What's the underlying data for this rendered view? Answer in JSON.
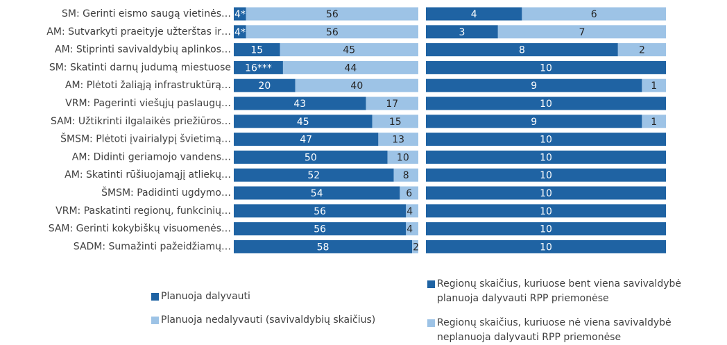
{
  "chart_data": [
    {
      "type": "stacked-bar-horizontal",
      "categories": [
        "SM: Gerinti eismo saugą vietinės…",
        "AM: Sutvarkyti praeityje užterštas ir…",
        "AM: Stiprinti savivaldybių aplinkos…",
        "SM: Skatinti darnų judumą miestuose",
        "AM: Plėtoti žaliąją infrastruktūrą…",
        "VRM: Pagerinti viešųjų paslaugų…",
        "SAM: Užtikrinti ilgalaikės priežiūros…",
        "ŠMSM: Plėtoti įvairialypį švietimą…",
        "AM: Didinti geriamojo vandens…",
        "AM: Skatinti rūšiuojamąjį atliekų…",
        "ŠMSM: Padidinti ugdymo…",
        "VRM: Paskatinti regionų, funkcinių…",
        "SAM: Gerinti kokybiškų visuomenės…",
        "SADM: Sumažinti pažeidžiamų…"
      ],
      "xlim": [
        0,
        60
      ],
      "series": [
        {
          "name": "Planuoja dalyvauti",
          "color": "#1f63a3",
          "values": [
            4,
            4,
            15,
            16,
            20,
            43,
            45,
            47,
            50,
            52,
            54,
            56,
            56,
            58
          ],
          "value_labels": [
            "4*",
            "4**",
            "15",
            "16***",
            "20",
            "43",
            "45",
            "47",
            "50",
            "52",
            "54",
            "56",
            "56",
            "58"
          ]
        },
        {
          "name": "Planuoja nedalyvauti (savivaldybių skaičius)",
          "color": "#9dc3e6",
          "values": [
            56,
            56,
            45,
            44,
            40,
            17,
            15,
            13,
            10,
            8,
            6,
            4,
            4,
            2
          ]
        }
      ]
    },
    {
      "type": "stacked-bar-horizontal",
      "xlim": [
        0,
        10
      ],
      "series": [
        {
          "name": "Regionų skaičius, kuriuose bent viena savivaldybė planuoja dalyvauti RPP priemonėse",
          "color": "#1f63a3",
          "values": [
            4,
            3,
            8,
            10,
            9,
            10,
            9,
            10,
            10,
            10,
            10,
            10,
            10,
            10
          ]
        },
        {
          "name": "Regionų skaičius, kuriuose nė viena savivaldybė neplanuoja dalyvauti  RPP priemonėse",
          "color": "#9dc3e6",
          "values": [
            6,
            7,
            2,
            0,
            1,
            0,
            1,
            0,
            0,
            0,
            0,
            0,
            0,
            0
          ]
        }
      ]
    }
  ]
}
